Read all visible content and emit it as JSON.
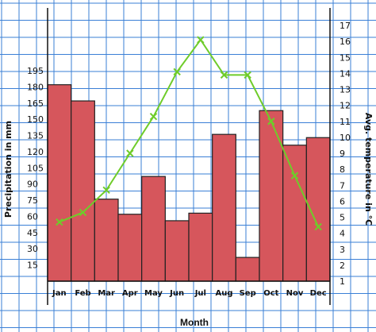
{
  "chart_data": {
    "type": "bar+line",
    "categories": [
      "Jan",
      "Feb",
      "Mar",
      "Apr",
      "May",
      "Jun",
      "Jul",
      "Aug",
      "Sep",
      "Oct",
      "Nov",
      "Dec"
    ],
    "xlabel": "Month",
    "precipitation": {
      "ylabel": "Precipitation in mm",
      "values": [
        182,
        167,
        76,
        62,
        97,
        56,
        63,
        136,
        22,
        158,
        126,
        133
      ],
      "ticks": [
        15,
        30,
        45,
        60,
        75,
        90,
        105,
        120,
        135,
        150,
        165,
        180,
        195
      ],
      "color": "#d6565c"
    },
    "temperature": {
      "ylabel": "Avg. temperature in °C",
      "values": [
        4.7,
        5.3,
        6.7,
        9.0,
        11.3,
        14.1,
        16.1,
        13.9,
        13.9,
        11.0,
        7.6,
        4.4
      ],
      "ticks": [
        1,
        2,
        3,
        4,
        5,
        6,
        7,
        8,
        9,
        10,
        11,
        12,
        13,
        14,
        15,
        16,
        17
      ],
      "color": "#6fcc2a"
    },
    "grid": true,
    "grid_color": "#3a7fd6"
  }
}
